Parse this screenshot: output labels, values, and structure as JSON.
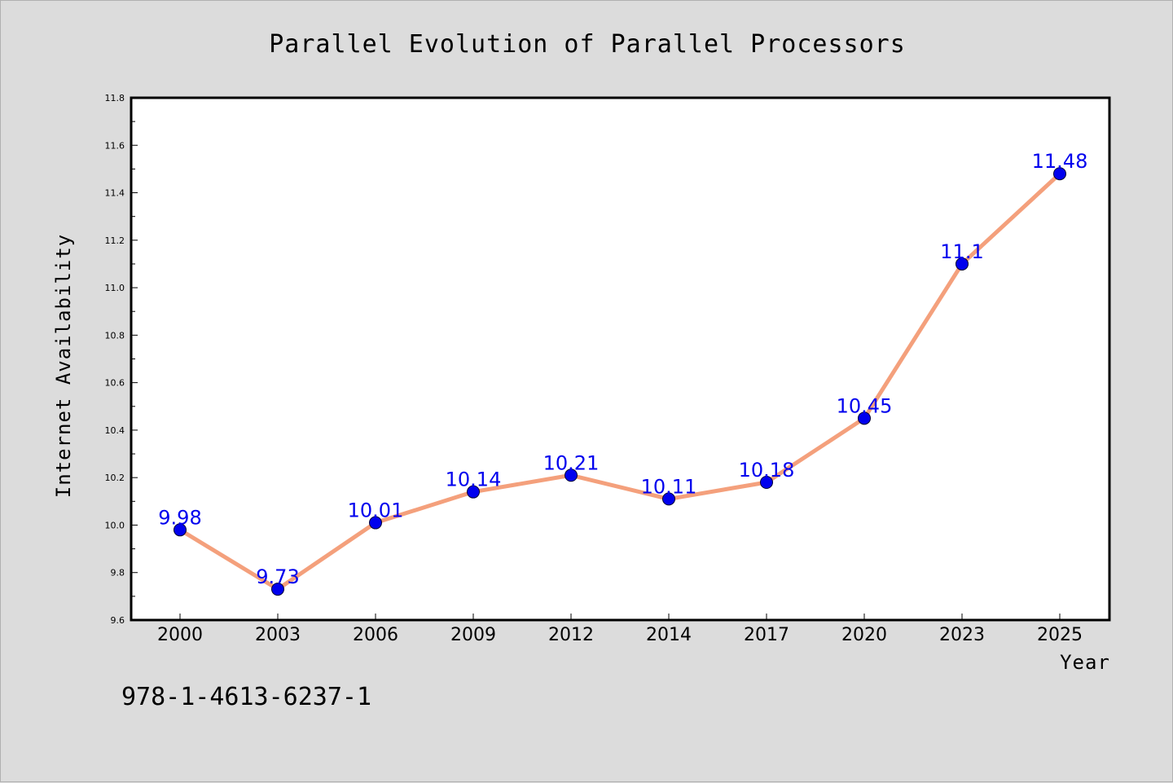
{
  "chart_data": {
    "type": "line",
    "title": "Parallel Evolution of Parallel Processors",
    "xlabel": "Year",
    "ylabel": "Internet Availability",
    "categories": [
      "2000",
      "2003",
      "2006",
      "2009",
      "2012",
      "2014",
      "2017",
      "2020",
      "2023",
      "2025"
    ],
    "series": [
      {
        "values": [
          9.98,
          9.73,
          10.01,
          10.14,
          10.21,
          10.11,
          10.18,
          10.45,
          11.1,
          11.48
        ],
        "data_labels": [
          "9.98",
          "9.73",
          "10.01",
          "10.14",
          "10.21",
          "10.11",
          "10.18",
          "10.45",
          "11.1",
          "11.48"
        ]
      }
    ],
    "ylim": [
      9.6,
      11.8
    ],
    "yticks": [
      "9.6",
      "9.8",
      "10.0",
      "10.2",
      "10.4",
      "10.6",
      "10.8",
      "11.0",
      "11.2",
      "11.4",
      "11.6",
      "11.8"
    ],
    "grid": false,
    "legend": "none",
    "colors": {
      "line": "#f4a07c",
      "marker": "#0000ee",
      "data_label": "#0000ee",
      "background": "#dcdcdc",
      "plot_background": "#ffffff"
    }
  },
  "footer": {
    "isbn": "978-1-4613-6237-1"
  }
}
